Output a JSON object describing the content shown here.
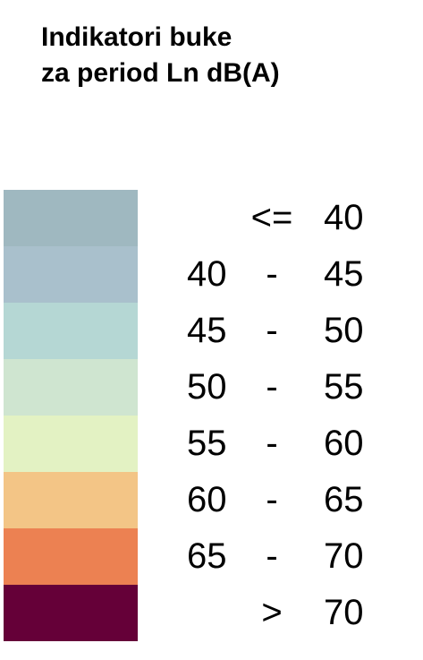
{
  "title": {
    "line1": "Indikatori buke",
    "line2": "za period Ln dB(A)"
  },
  "legend": [
    {
      "color": "#9fb8c0",
      "lo": "",
      "sep": "",
      "op": "<=",
      "hi": "40"
    },
    {
      "color": "#a9c0cc",
      "lo": "40",
      "sep": "-",
      "op": "",
      "hi": "45"
    },
    {
      "color": "#b5d7d4",
      "lo": "45",
      "sep": "-",
      "op": "",
      "hi": "50"
    },
    {
      "color": "#cfe5d0",
      "lo": "50",
      "sep": "-",
      "op": "",
      "hi": "55"
    },
    {
      "color": "#e3f2c3",
      "lo": "55",
      "sep": "-",
      "op": "",
      "hi": "60"
    },
    {
      "color": "#f3c586",
      "lo": "60",
      "sep": "-",
      "op": "",
      "hi": "65"
    },
    {
      "color": "#ec8152",
      "lo": "65",
      "sep": "-",
      "op": "",
      "hi": "70"
    },
    {
      "color": "#650038",
      "lo": "",
      "sep": "",
      "op": ">",
      "hi": "70"
    }
  ]
}
